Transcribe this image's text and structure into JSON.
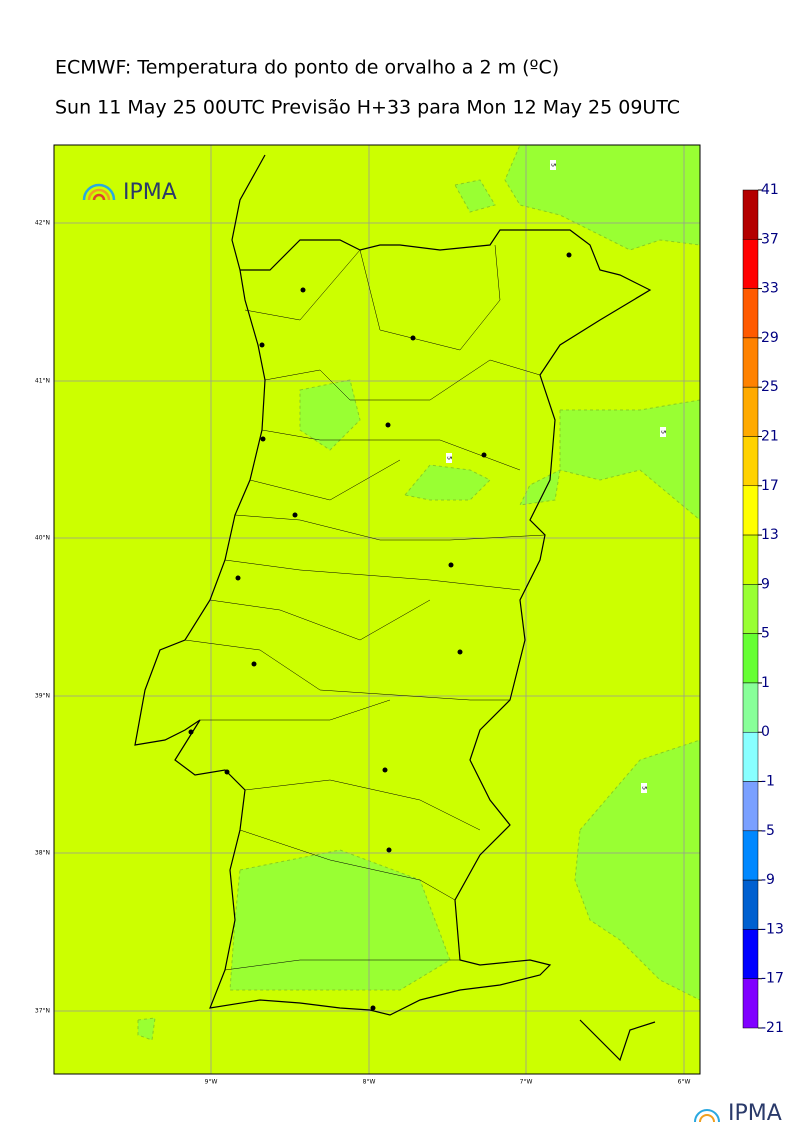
{
  "header": {
    "title": "ECMWF: Temperatura do ponto de orvalho a 2 m (ºC)",
    "subtitle": "Sun 11 May 25 00UTC Previsão H+33 para Mon 12 May 25 09UTC"
  },
  "map": {
    "logo": "IPMA",
    "lat_labels": [
      "42°N",
      "41°N",
      "40°N",
      "39°N",
      "38°N",
      "37°N"
    ],
    "lon_labels": [
      "9°W",
      "8°W",
      "7°W",
      "6°W"
    ],
    "contour_labels": [
      "5",
      "5",
      "5",
      "5"
    ]
  },
  "colorbar": {
    "levels": [
      41,
      37,
      33,
      29,
      25,
      21,
      17,
      13,
      9,
      5,
      1,
      0,
      -1,
      -5,
      -9,
      -13,
      -17,
      -21
    ],
    "colors": [
      "#b40000",
      "#ff0000",
      "#ff5a00",
      "#ff8200",
      "#ffaa00",
      "#ffd200",
      "#ffff00",
      "#ccff00",
      "#99ff33",
      "#66ff33",
      "#88ff99",
      "#88ffff",
      "#7aa0ff",
      "#0088ff",
      "#0060d0",
      "#0000ff",
      "#8000ff"
    ]
  },
  "footer": {
    "logo": "IPMA"
  }
}
